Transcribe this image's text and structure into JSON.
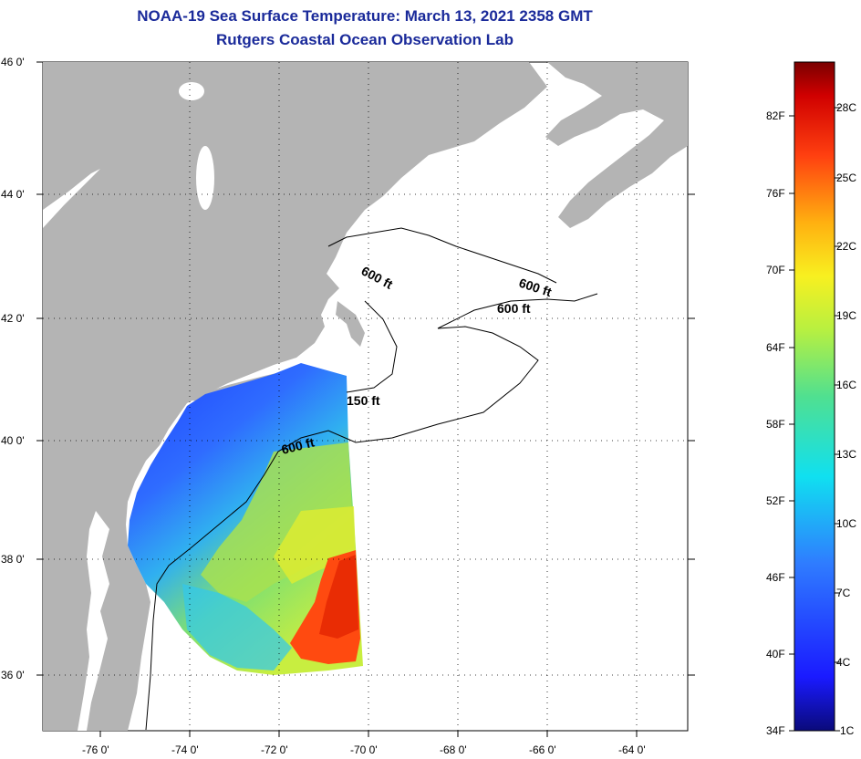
{
  "title": "NOAA-19 Sea Surface Temperature:  March 13, 2021 2358 GMT",
  "subtitle": "Rutgers Coastal Ocean Observation Lab",
  "lat_labels": [
    "46 0'",
    "44 0'",
    "42 0'",
    "40 0'",
    "38 0'",
    "36 0'"
  ],
  "lon_labels": [
    "-76 0'",
    "-74 0'",
    "-72 0'",
    "-70 0'",
    "-68 0'",
    "-66 0'",
    "-64 0'"
  ],
  "contour_labels": [
    "600 ft",
    "600 ft",
    "600 ft",
    "150 ft",
    "600 ft"
  ],
  "colorbar": {
    "f_labels": [
      "82F",
      "76F",
      "70F",
      "64F",
      "58F",
      "52F",
      "46F",
      "40F",
      "34F"
    ],
    "c_labels": [
      "28C",
      "25C",
      "22C",
      "19C",
      "16C",
      "13C",
      "10C",
      "7C",
      "4C",
      "1C"
    ]
  },
  "colors": {
    "land": "#b4b4b4",
    "title": "#1a2a9a",
    "ocean_no_data": "#ffffff"
  }
}
